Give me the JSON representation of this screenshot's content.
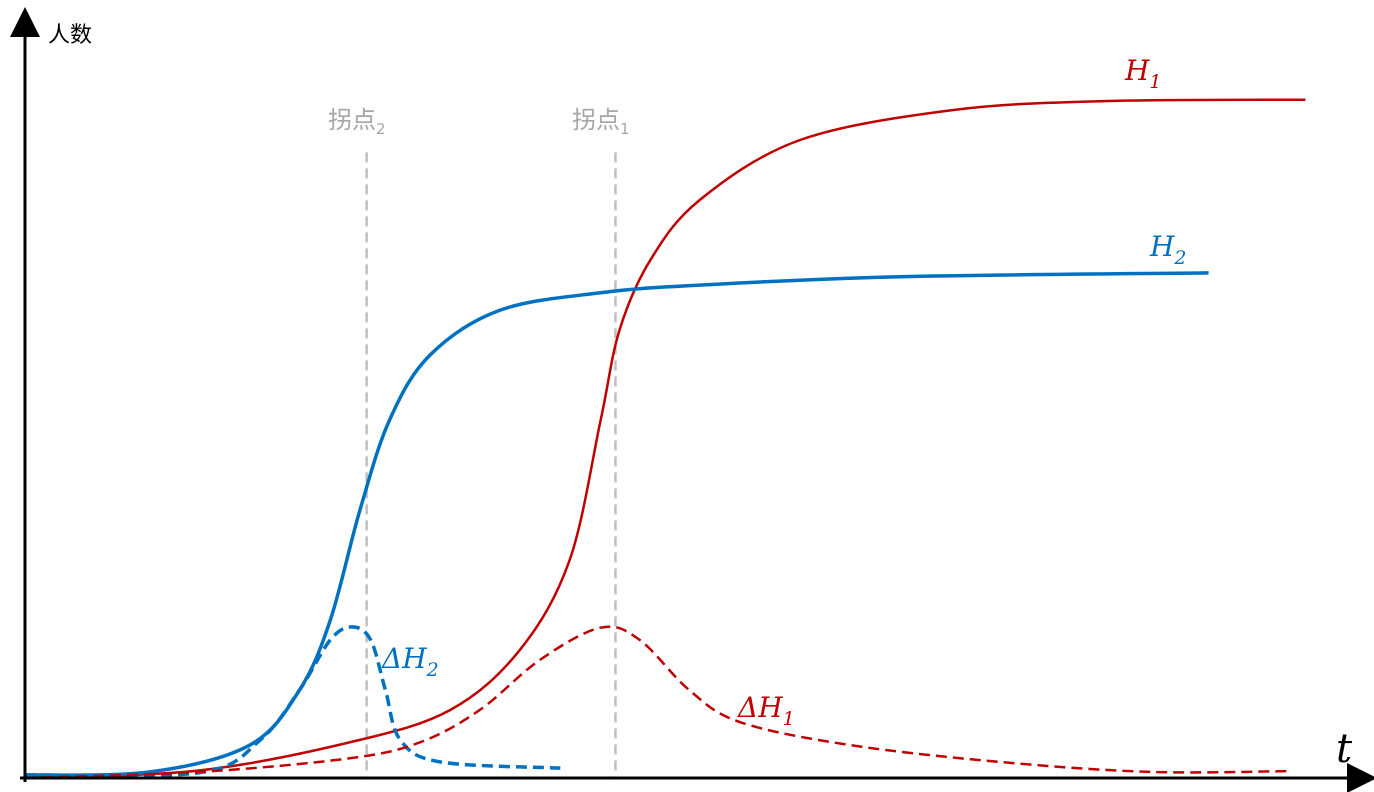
{
  "chart_data": {
    "type": "line",
    "title": "",
    "xlabel": "t",
    "ylabel": "人数",
    "xlim": [
      0,
      100
    ],
    "ylim": [
      0,
      100
    ],
    "grid": false,
    "colors": {
      "h1": "#C00000",
      "h2": "#0070C0",
      "guide": "#BFBFBF",
      "axis": "#000000"
    },
    "series": [
      {
        "name": "H1",
        "label_main": "H",
        "label_sub": "1",
        "style": "solid",
        "color": "#C00000",
        "x": [
          0,
          13.0,
          24.2,
          31.6,
          36.8,
          40.5,
          42.8,
          44.2,
          46.5,
          50.2,
          57.6,
          68.8,
          79.9,
          95.2
        ],
        "y": [
          0,
          1.0,
          4.7,
          8.9,
          16.8,
          28.6,
          46.9,
          58.7,
          67.9,
          75.8,
          83.6,
          87.5,
          88.7,
          88.9
        ]
      },
      {
        "name": "H2",
        "label_main": "H",
        "label_sub": "2",
        "style": "solid",
        "color": "#0070C0",
        "x": [
          0,
          9.3,
          16.7,
          20.4,
          22.7,
          24.9,
          27.1,
          30.1,
          35.3,
          42.8,
          50.2,
          65.1,
          88.0
        ],
        "y": [
          0.4,
          0.8,
          4.3,
          11.5,
          20.7,
          35.1,
          46.9,
          55.4,
          61.3,
          63.6,
          64.6,
          65.7,
          66.2
        ]
      },
      {
        "name": "ΔH2",
        "label_main": "ΔH",
        "label_sub": "2",
        "style": "dashed",
        "color": "#0070C0",
        "x": [
          0,
          13.0,
          17.5,
          20.4,
          22.7,
          24.3,
          25.7,
          26.8,
          27.9,
          30.9,
          39.8
        ],
        "y": [
          0.4,
          0.7,
          5.0,
          11.5,
          18.1,
          19.8,
          18.1,
          11.5,
          5.0,
          2.1,
          1.3
        ]
      },
      {
        "name": "ΔH1",
        "label_main": "ΔH",
        "label_sub": "1",
        "style": "dashed",
        "color": "#C00000",
        "x": [
          0,
          13.0,
          24.2,
          29.4,
          33.8,
          38.3,
          42.8,
          45.7,
          49.4,
          53.2,
          61.4,
          72.5,
          83.6,
          94.0
        ],
        "y": [
          0,
          0.8,
          2.6,
          4.7,
          8.9,
          15.5,
          19.7,
          18.1,
          11.5,
          7.3,
          4.3,
          2.1,
          0.8,
          0.9
        ]
      }
    ],
    "annotations": [
      {
        "name": "inflection-2",
        "label_main": "拐点",
        "label_sub": "2",
        "x": 25.4,
        "y_top": 82.0
      },
      {
        "name": "inflection-1",
        "label_main": "拐点",
        "label_sub": "1",
        "x": 43.9,
        "y_top": 82.0
      }
    ]
  }
}
